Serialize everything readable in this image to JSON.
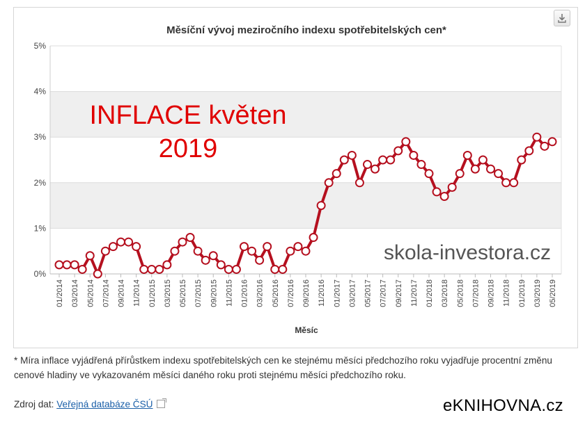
{
  "chart_data": {
    "type": "line",
    "title": "Měsíční vývoj meziročního indexu spotřebitelských cen*",
    "xlabel": "Měsíc",
    "ylabel": "",
    "ylim": [
      0,
      5
    ],
    "yticks": [
      "0%",
      "1%",
      "2%",
      "3%",
      "4%",
      "5%"
    ],
    "x": [
      "01/2014",
      "02/2014",
      "03/2014",
      "04/2014",
      "05/2014",
      "06/2014",
      "07/2014",
      "08/2014",
      "09/2014",
      "10/2014",
      "11/2014",
      "12/2014",
      "01/2015",
      "02/2015",
      "03/2015",
      "04/2015",
      "05/2015",
      "06/2015",
      "07/2015",
      "08/2015",
      "09/2015",
      "10/2015",
      "11/2015",
      "12/2015",
      "01/2016",
      "02/2016",
      "03/2016",
      "04/2016",
      "05/2016",
      "06/2016",
      "07/2016",
      "08/2016",
      "09/2016",
      "10/2016",
      "11/2016",
      "12/2016",
      "01/2017",
      "02/2017",
      "03/2017",
      "04/2017",
      "05/2017",
      "06/2017",
      "07/2017",
      "08/2017",
      "09/2017",
      "10/2017",
      "11/2017",
      "12/2017",
      "01/2018",
      "02/2018",
      "03/2018",
      "04/2018",
      "05/2018",
      "06/2018",
      "07/2018",
      "08/2018",
      "09/2018",
      "10/2018",
      "11/2018",
      "12/2018",
      "01/2019",
      "02/2019",
      "03/2019",
      "04/2019",
      "05/2019"
    ],
    "series": [
      {
        "values": [
          0.2,
          0.2,
          0.2,
          0.1,
          0.4,
          0.0,
          0.5,
          0.6,
          0.7,
          0.7,
          0.6,
          0.1,
          0.1,
          0.1,
          0.2,
          0.5,
          0.7,
          0.8,
          0.5,
          0.3,
          0.4,
          0.2,
          0.1,
          0.1,
          0.6,
          0.5,
          0.3,
          0.6,
          0.1,
          0.1,
          0.5,
          0.6,
          0.5,
          0.8,
          1.5,
          2.0,
          2.2,
          2.5,
          2.6,
          2.0,
          2.4,
          2.3,
          2.5,
          2.5,
          2.7,
          2.9,
          2.6,
          2.4,
          2.2,
          1.8,
          1.7,
          1.9,
          2.2,
          2.6,
          2.3,
          2.5,
          2.3,
          2.2,
          2.0,
          2.0,
          2.5,
          2.7,
          3.0,
          2.8,
          2.9
        ],
        "color": "#b5101f"
      }
    ],
    "grid": true,
    "annotations": [
      "INFLACE květen",
      "2019",
      "skola-investora.cz"
    ]
  },
  "colors": {
    "line": "#b5101f",
    "band": "#efefef",
    "annotation_red": "#e00000",
    "watermark": "#555555",
    "link": "#1a5fa8"
  },
  "footnote": "* Míra inflace vyjádřená přírůstkem indexu spotřebitelských cen ke stejnému měsíci předchozího roku vyjadřuje procentní změnu cenové hladiny ve vykazovaném měsíci daného roku proti stejnému měsíci předchozího roku.",
  "source": {
    "label": "Zdroj dat:",
    "link_text": "Veřejná databáze ČSÚ"
  },
  "brand": "eKNIHOVNA.cz",
  "icons": {
    "download": "download-icon",
    "external_link": "external-link-icon"
  }
}
